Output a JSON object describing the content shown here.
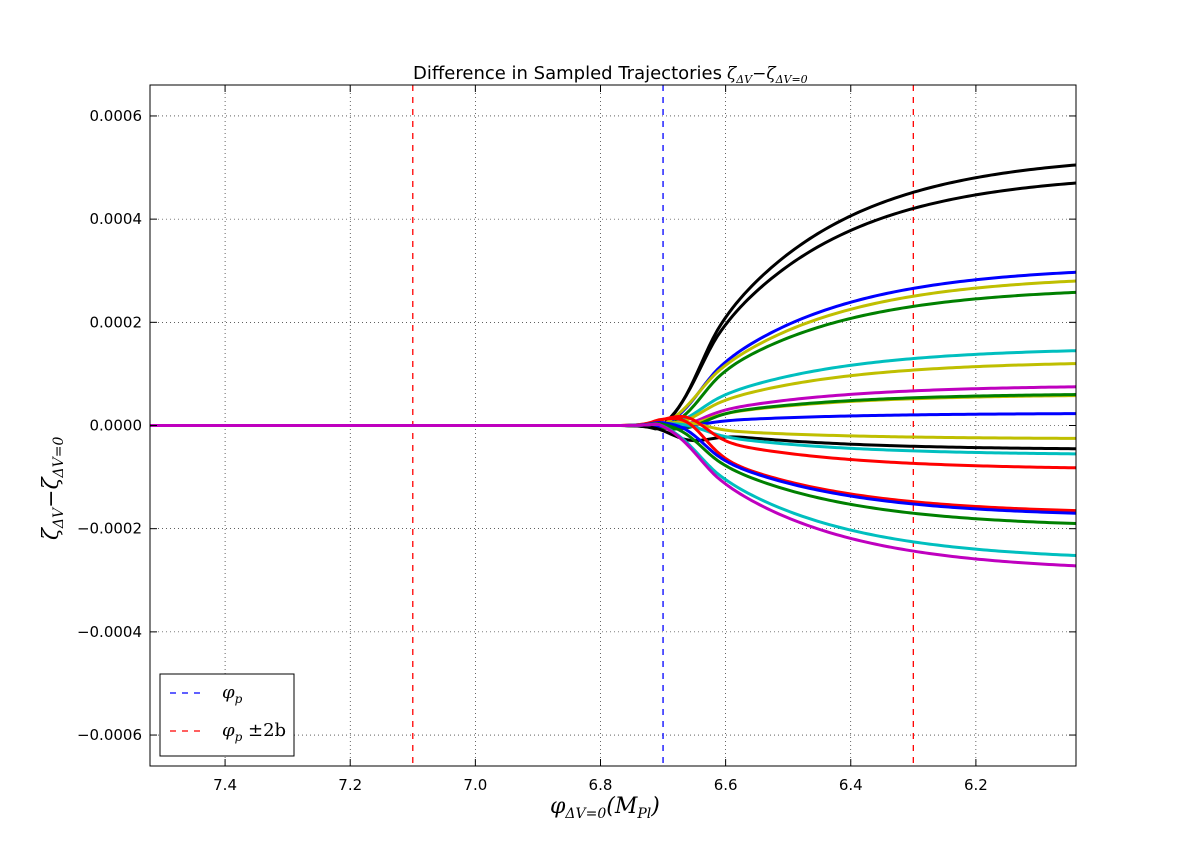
{
  "chart_data": {
    "type": "line",
    "title": "Difference in Sampled Trajectories",
    "title_math": {
      "base": "ζ",
      "sub1": "ΔV",
      "sep": "−",
      "base2": "ζ",
      "sub2": "ΔV=0"
    },
    "xlabel": {
      "base": "φ",
      "sub": "ΔV=0",
      "rest": "(M",
      "rest_sub": "Pl",
      "close": ")"
    },
    "ylabel": {
      "base": "ζ",
      "sub1": "ΔV",
      "sep": "−",
      "base2": "ζ",
      "sub2": "ΔV=0"
    },
    "xlim": [
      7.52,
      6.04
    ],
    "ylim": [
      -0.00066,
      0.00066
    ],
    "x_reversed": true,
    "grid": true,
    "xticks": [
      7.4,
      7.2,
      7.0,
      6.8,
      6.6,
      6.4,
      6.2
    ],
    "xtick_labels": [
      "7.4",
      "7.2",
      "7.0",
      "6.8",
      "6.6",
      "6.4",
      "6.2"
    ],
    "yticks": [
      0.0006,
      0.0004,
      0.0002,
      0.0,
      -0.0002,
      -0.0004,
      -0.0006
    ],
    "ytick_labels": [
      "0.0006",
      "0.0004",
      "0.0002",
      "0.0000",
      "−0.0002",
      "−0.0004",
      "−0.0006"
    ],
    "legend_position": "bottom-left",
    "legend": [
      {
        "label": "φ",
        "sub": "p",
        "extra": "",
        "color": "#0000ff"
      },
      {
        "label": "φ",
        "sub": "p",
        "extra": " ±2b",
        "color": "#ff0000"
      }
    ],
    "vlines": [
      {
        "x": 6.7,
        "color": "#0000ff"
      },
      {
        "x": 7.1,
        "color": "#ff0000"
      },
      {
        "x": 6.3,
        "color": "#ff0000"
      }
    ],
    "series": [
      {
        "color": "#000000",
        "end": 0.000505,
        "mid": 0.000405,
        "dip": -2.5e-05,
        "peak": 0.0
      },
      {
        "color": "#000000",
        "end": 0.00047,
        "mid": 0.00037,
        "dip": -2e-05,
        "peak": 0.0
      },
      {
        "color": "#0000ff",
        "end": 0.000297,
        "mid": 0.000238,
        "dip": -1.5e-05,
        "peak": 0.0
      },
      {
        "color": "#bfbf00",
        "end": 0.00028,
        "mid": 0.000215,
        "dip": -1e-05,
        "peak": 0.0
      },
      {
        "color": "#008000",
        "end": 0.000258,
        "mid": 0.000212,
        "dip": -2e-05,
        "peak": 0.0
      },
      {
        "color": "#00bfbf",
        "end": 0.000145,
        "mid": 0.000105,
        "dip": -1e-05,
        "peak": 0.0
      },
      {
        "color": "#bfbf00",
        "end": 0.00012,
        "mid": 9.5e-05,
        "dip": -1e-05,
        "peak": 0.0
      },
      {
        "color": "#bf00bf",
        "end": 7.5e-05,
        "mid": 7e-05,
        "dip": -1e-05,
        "peak": 0.0
      },
      {
        "color": "#bfbf00",
        "end": 5.8e-05,
        "mid": 5e-05,
        "dip": -1e-05,
        "peak": 0.0
      },
      {
        "color": "#008000",
        "end": 6e-05,
        "mid": 5.5e-05,
        "dip": -1.5e-05,
        "peak": 0.0
      },
      {
        "color": "#0000ff",
        "end": 2.3e-05,
        "mid": 1.5e-05,
        "dip": -5e-06,
        "peak": 0.0
      },
      {
        "color": "#bfbf00",
        "end": -2.5e-05,
        "mid": -2e-05,
        "dip": 0.0,
        "peak": 1e-05
      },
      {
        "color": "#000000",
        "end": -4.5e-05,
        "mid": -4e-05,
        "dip": -2e-05,
        "peak": 0.0
      },
      {
        "color": "#00bfbf",
        "end": -5.5e-05,
        "mid": -5e-05,
        "dip": 0.0,
        "peak": 1e-05
      },
      {
        "color": "#ff0000",
        "end": -8.2e-05,
        "mid": -7e-05,
        "dip": 0.0,
        "peak": 3e-05
      },
      {
        "color": "#ff0000",
        "end": -0.000165,
        "mid": -0.00014,
        "dip": 0.0,
        "peak": 3.5e-05
      },
      {
        "color": "#0000ff",
        "end": -0.00017,
        "mid": -0.000155,
        "dip": 0.0,
        "peak": 2e-05
      },
      {
        "color": "#008000",
        "end": -0.00019,
        "mid": -0.000165,
        "dip": 0.0,
        "peak": 1.5e-05
      },
      {
        "color": "#00bfbf",
        "end": -0.000252,
        "mid": -0.000215,
        "dip": 0.0,
        "peak": 1e-05
      },
      {
        "color": "#bf00bf",
        "end": -0.000272,
        "mid": -0.000228,
        "dip": 0.0,
        "peak": 1e-05
      }
    ]
  }
}
